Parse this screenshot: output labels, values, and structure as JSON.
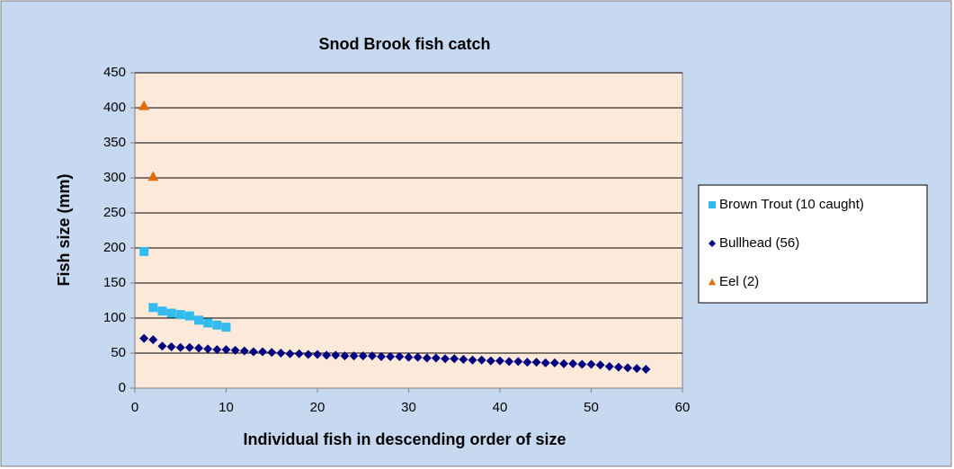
{
  "chart_data": {
    "type": "scatter",
    "title": "Snod Brook fish catch",
    "xlabel": "Individual fish in descending order of size",
    "ylabel": "Fish size (mm)",
    "xlim": [
      0,
      60
    ],
    "xticks": [
      0,
      10,
      20,
      30,
      40,
      50,
      60
    ],
    "ylim": [
      0,
      450
    ],
    "yticks": [
      0,
      50,
      100,
      150,
      200,
      250,
      300,
      350,
      400,
      450
    ],
    "grid": true,
    "legend": "right",
    "series": [
      {
        "name": "Brown Trout (10 caught)",
        "color": "#33bbee",
        "marker": "square",
        "x": [
          1,
          2,
          3,
          4,
          5,
          6,
          7,
          8,
          9,
          10
        ],
        "values": [
          195,
          115,
          110,
          107,
          105,
          103,
          97,
          93,
          90,
          87
        ]
      },
      {
        "name": "Bullhead (56)",
        "color": "#000080",
        "marker": "diamond",
        "x": [
          1,
          2,
          3,
          4,
          5,
          6,
          7,
          8,
          9,
          10,
          11,
          12,
          13,
          14,
          15,
          16,
          17,
          18,
          19,
          20,
          21,
          22,
          23,
          24,
          25,
          26,
          27,
          28,
          29,
          30,
          31,
          32,
          33,
          34,
          35,
          36,
          37,
          38,
          39,
          40,
          41,
          42,
          43,
          44,
          45,
          46,
          47,
          48,
          49,
          50,
          51,
          52,
          53,
          54,
          55,
          56
        ],
        "values": [
          71,
          69,
          60,
          59,
          58,
          58,
          57,
          56,
          55,
          55,
          54,
          53,
          52,
          52,
          51,
          50,
          49,
          49,
          48,
          48,
          47,
          47,
          46,
          46,
          46,
          46,
          45,
          45,
          45,
          44,
          44,
          43,
          43,
          42,
          42,
          41,
          40,
          40,
          39,
          39,
          38,
          38,
          37,
          37,
          36,
          36,
          35,
          35,
          34,
          34,
          33,
          31,
          30,
          29,
          28,
          27
        ]
      },
      {
        "name": "Eel (2)",
        "color": "#e36c0a",
        "marker": "triangle",
        "x": [
          1,
          2
        ],
        "values": [
          403,
          302
        ]
      }
    ]
  }
}
